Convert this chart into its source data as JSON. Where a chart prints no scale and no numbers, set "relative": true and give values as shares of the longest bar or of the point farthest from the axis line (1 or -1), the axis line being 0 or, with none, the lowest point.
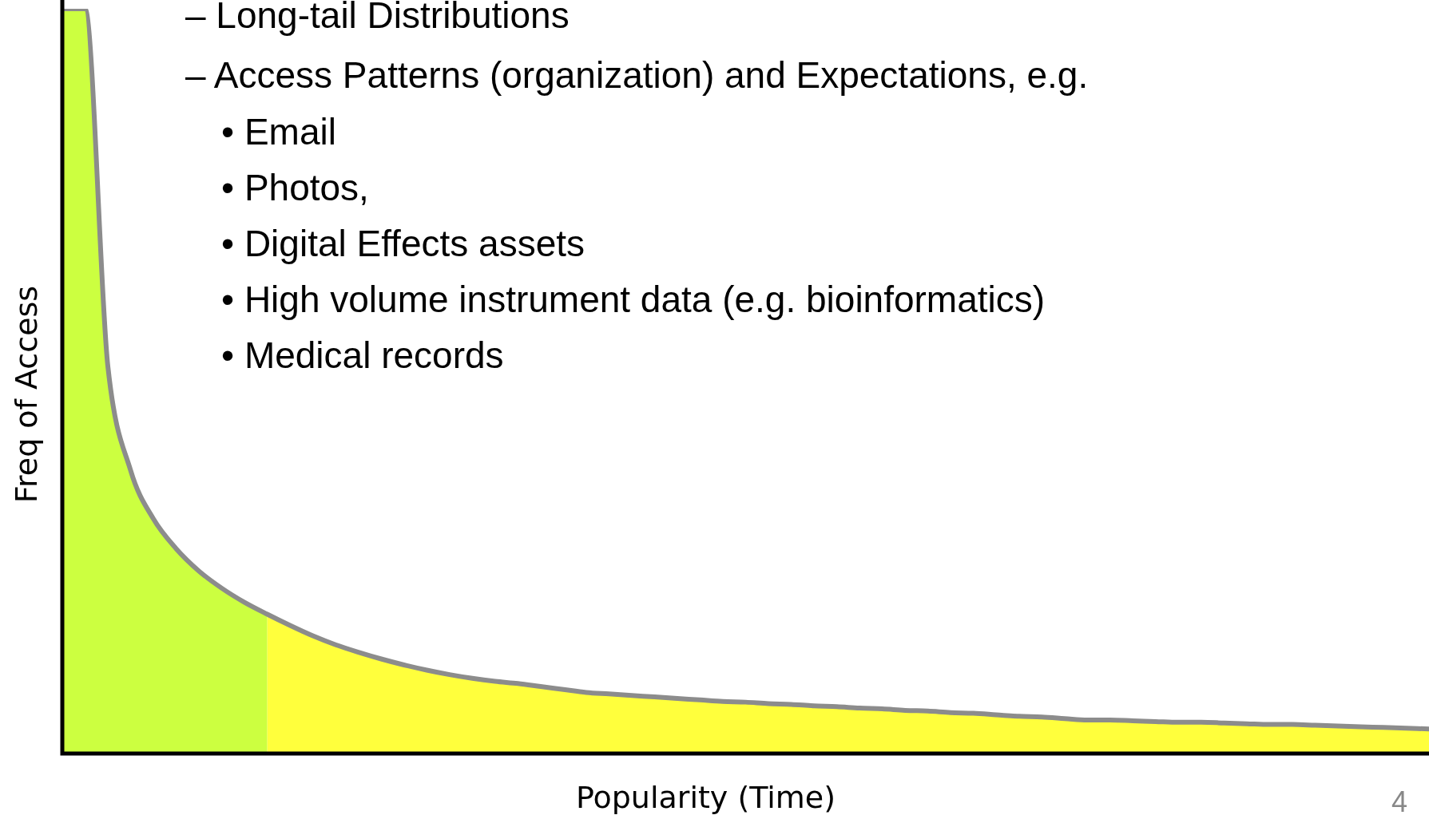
{
  "chart_data": {
    "type": "area",
    "relative": true,
    "xlabel": "Popularity (Time)",
    "ylabel": "Freq of Access",
    "annotations": [
      "– Long-tail Distributions",
      "– Access Patterns (organization) and Expectations, e.g.",
      "• Email",
      "• Photos,",
      "• Digital Effects assets",
      "• High volume instrument data (e.g. bioinformatics)",
      "• Medical records",
      "4"
    ],
    "categories": [
      null,
      null,
      null,
      null,
      null,
      null,
      null,
      null,
      null,
      null,
      null,
      null,
      null,
      null,
      null,
      null,
      null,
      null,
      null,
      null,
      null,
      null,
      null,
      null,
      null,
      null,
      null,
      null,
      null,
      null,
      null,
      null,
      null,
      null,
      null,
      null,
      null,
      null,
      null,
      null,
      null,
      null,
      null,
      null,
      null,
      null,
      null,
      null,
      null,
      null,
      null,
      null,
      null,
      null,
      null,
      null,
      null,
      null,
      null,
      null,
      null
    ],
    "series": [
      {
        "color": "#ccff40",
        "values": [
          1.0,
          1.0,
          0.52,
          0.38,
          0.315,
          0.275,
          0.245,
          0.222,
          0.203,
          0.187,
          null,
          null,
          null,
          null,
          null,
          null,
          null,
          null,
          null,
          null,
          null,
          null,
          null,
          null,
          null,
          null,
          null,
          null,
          null,
          null,
          null,
          null,
          null,
          null,
          null,
          null,
          null,
          null,
          null,
          null,
          null,
          null,
          null,
          null,
          null,
          null,
          null,
          null,
          null,
          null,
          null,
          null,
          null,
          null,
          null,
          null,
          null,
          null,
          null,
          null,
          null
        ]
      },
      {
        "color": "#ffff3c",
        "values": [
          null,
          null,
          null,
          null,
          null,
          null,
          null,
          null,
          null,
          0.187,
          0.172,
          0.158,
          0.146,
          0.136,
          0.127,
          0.119,
          0.112,
          0.106,
          0.101,
          0.097,
          0.094,
          0.09,
          0.086,
          0.082,
          0.08,
          0.078,
          0.076,
          0.074,
          0.072,
          0.07,
          0.069,
          0.067,
          0.066,
          0.064,
          0.063,
          0.061,
          0.06,
          0.058,
          0.057,
          0.055,
          0.054,
          0.052,
          0.05,
          0.049,
          0.047,
          0.045,
          0.045,
          0.044,
          0.043,
          0.042,
          0.042,
          0.041,
          0.04,
          0.039,
          0.039,
          0.038,
          0.037,
          0.036,
          0.035,
          0.034,
          0.033
        ]
      },
      {
        "type": "line",
        "color": "#8c8c8c",
        "values": [
          1.0,
          1.0,
          0.52,
          0.38,
          0.315,
          0.275,
          0.245,
          0.222,
          0.203,
          0.187,
          0.172,
          0.158,
          0.146,
          0.136,
          0.127,
          0.119,
          0.112,
          0.106,
          0.101,
          0.097,
          0.094,
          0.09,
          0.086,
          0.082,
          0.08,
          0.078,
          0.076,
          0.074,
          0.072,
          0.07,
          0.069,
          0.067,
          0.066,
          0.064,
          0.063,
          0.061,
          0.06,
          0.058,
          0.057,
          0.055,
          0.054,
          0.052,
          0.05,
          0.049,
          0.047,
          0.045,
          0.045,
          0.044,
          0.043,
          0.042,
          0.042,
          0.041,
          0.04,
          0.039,
          0.039,
          0.038,
          0.037,
          0.036,
          0.035,
          0.034,
          0.033
        ]
      }
    ]
  }
}
